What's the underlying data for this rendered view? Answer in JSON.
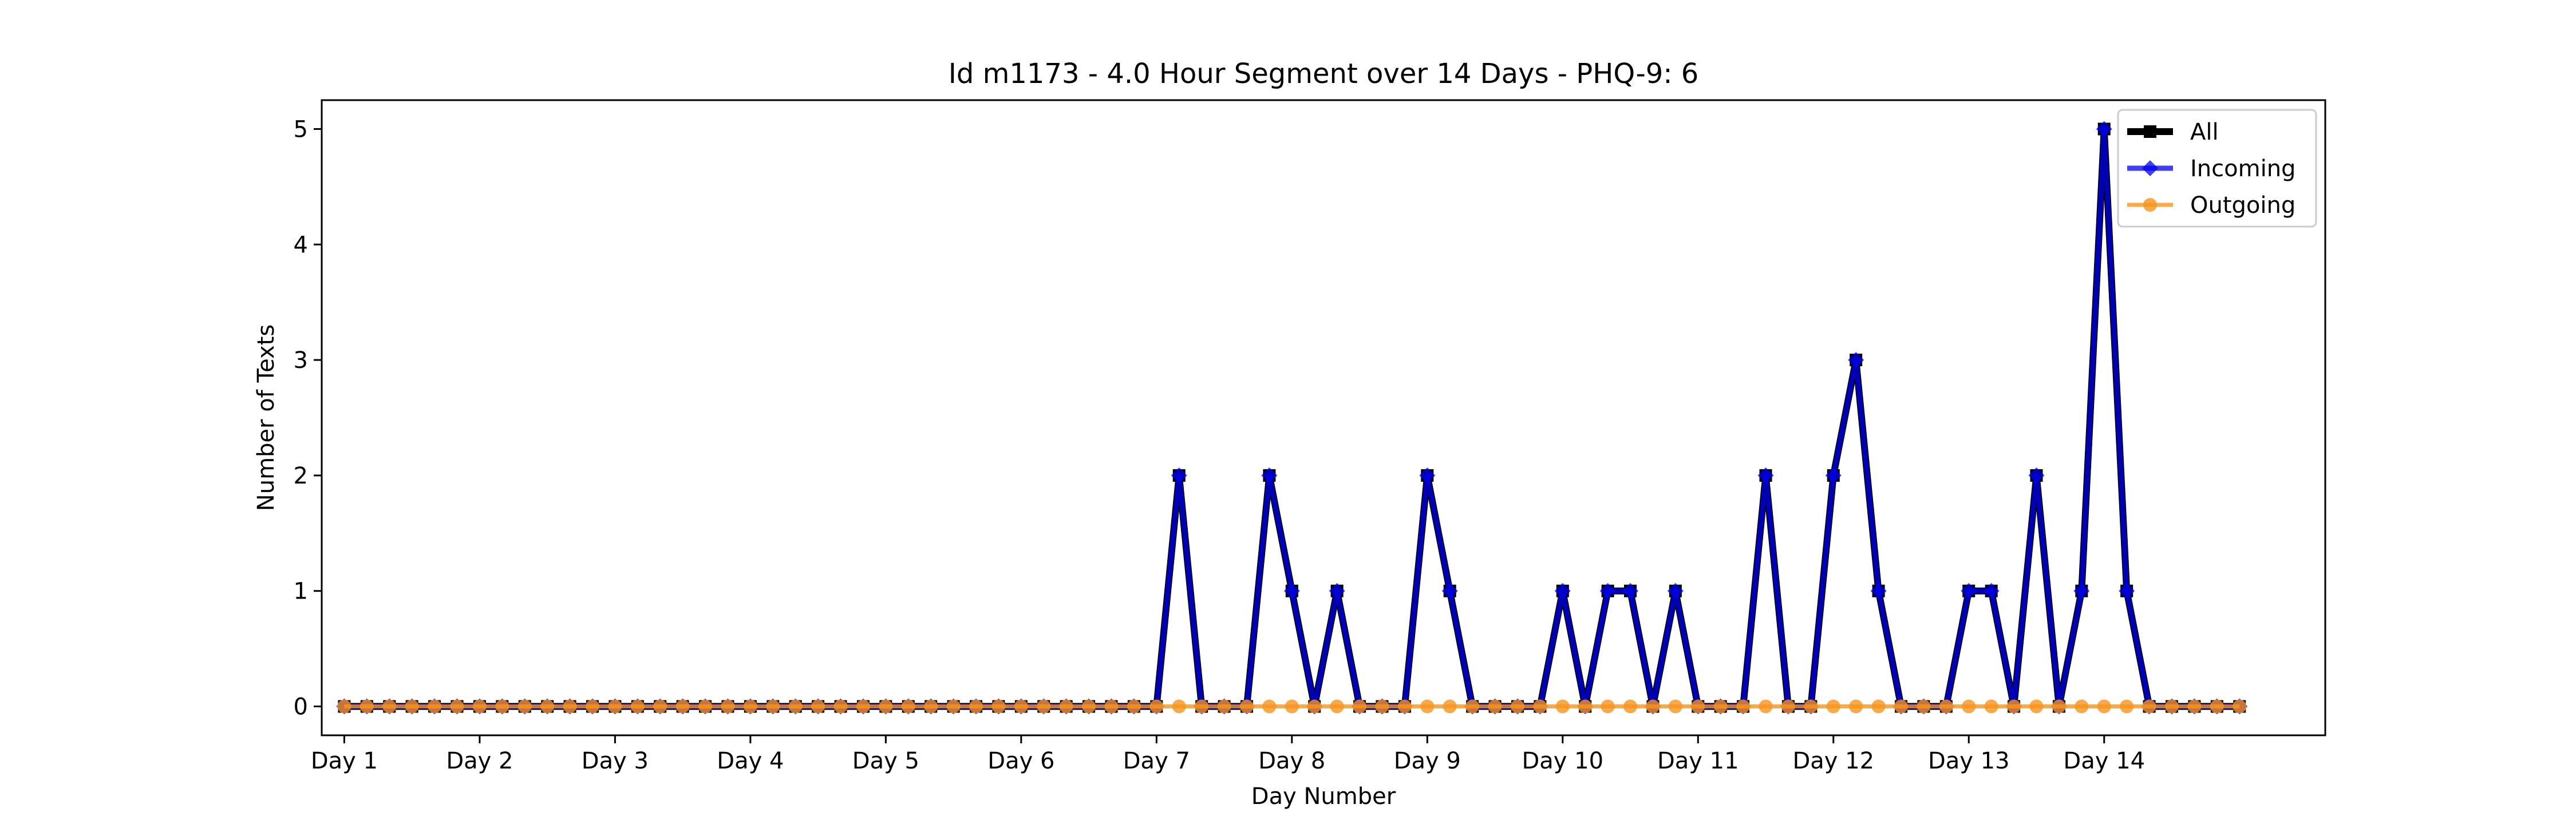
{
  "chart_data": {
    "type": "line",
    "title": "Id m1173 - 4.0 Hour Segment over 14 Days - PHQ-9: 6",
    "xlabel": "Day Number",
    "ylabel": "Number of Texts",
    "ylim": [
      -0.25,
      5.25
    ],
    "yticks": [
      0,
      1,
      2,
      3,
      4,
      5
    ],
    "xlim": [
      -1.0,
      87.8
    ],
    "xtick_labels": [
      "Day 1",
      "Day 2",
      "Day 3",
      "Day 4",
      "Day 5",
      "Day 6",
      "Day 7",
      "Day 8",
      "Day 9",
      "Day 10",
      "Day 11",
      "Day 12",
      "Day 13",
      "Day 14"
    ],
    "xtick_positions": [
      0,
      6,
      12,
      18,
      24,
      30,
      36,
      42,
      48,
      54,
      60,
      66,
      72,
      78
    ],
    "grid": false,
    "legend_position": "top-right",
    "series": [
      {
        "name": "All",
        "color": "#000000",
        "marker": "square",
        "values": [
          0,
          0,
          0,
          0,
          0,
          0,
          0,
          0,
          0,
          0,
          0,
          0,
          0,
          0,
          0,
          0,
          0,
          0,
          0,
          0,
          0,
          0,
          0,
          0,
          0,
          0,
          0,
          0,
          0,
          0,
          0,
          0,
          0,
          0,
          0,
          0,
          0,
          2,
          0,
          0,
          0,
          2,
          1,
          0,
          1,
          0,
          0,
          0,
          2,
          1,
          0,
          0,
          0,
          0,
          1,
          0,
          1,
          1,
          0,
          1,
          0,
          0,
          0,
          2,
          0,
          0,
          2,
          3,
          1,
          0,
          0,
          0,
          1,
          1,
          0,
          2,
          0,
          1,
          5,
          1,
          0,
          0,
          0,
          0,
          0
        ]
      },
      {
        "name": "Incoming",
        "color": "#0000ee",
        "marker": "diamond",
        "values": [
          0,
          0,
          0,
          0,
          0,
          0,
          0,
          0,
          0,
          0,
          0,
          0,
          0,
          0,
          0,
          0,
          0,
          0,
          0,
          0,
          0,
          0,
          0,
          0,
          0,
          0,
          0,
          0,
          0,
          0,
          0,
          0,
          0,
          0,
          0,
          0,
          0,
          2,
          0,
          0,
          0,
          2,
          1,
          0,
          1,
          0,
          0,
          0,
          2,
          1,
          0,
          0,
          0,
          0,
          1,
          0,
          1,
          1,
          0,
          1,
          0,
          0,
          0,
          2,
          0,
          0,
          2,
          3,
          1,
          0,
          0,
          0,
          1,
          1,
          0,
          2,
          0,
          1,
          5,
          1,
          0,
          0,
          0,
          0,
          0
        ]
      },
      {
        "name": "Outgoing",
        "color": "#f7941d",
        "marker": "circle",
        "values": [
          0,
          0,
          0,
          0,
          0,
          0,
          0,
          0,
          0,
          0,
          0,
          0,
          0,
          0,
          0,
          0,
          0,
          0,
          0,
          0,
          0,
          0,
          0,
          0,
          0,
          0,
          0,
          0,
          0,
          0,
          0,
          0,
          0,
          0,
          0,
          0,
          0,
          0,
          0,
          0,
          0,
          0,
          0,
          0,
          0,
          0,
          0,
          0,
          0,
          0,
          0,
          0,
          0,
          0,
          0,
          0,
          0,
          0,
          0,
          0,
          0,
          0,
          0,
          0,
          0,
          0,
          0,
          0,
          0,
          0,
          0,
          0,
          0,
          0,
          0,
          0,
          0,
          0,
          0,
          0,
          0,
          0,
          0,
          0,
          0
        ]
      }
    ]
  }
}
